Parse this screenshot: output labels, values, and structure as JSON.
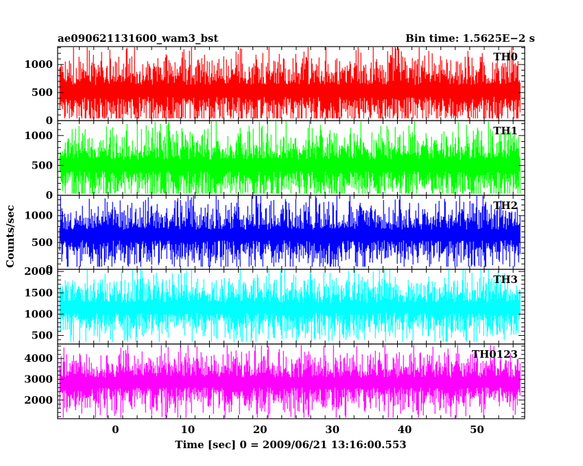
{
  "header": {
    "title": "ae090621131600_wam3_bst",
    "bin_time": "Bin time: 1.5625E−2 s"
  },
  "axes": {
    "ylabel": "Counts/sec",
    "xlabel": "Time [sec] 0 = 2009/06/21 13:16:00.553"
  },
  "chart_data": {
    "type": "line",
    "title": "ae090621131600_wam3_bst",
    "xlabel": "Time [sec] 0 = 2009/06/21 13:16:00.553",
    "ylabel": "Counts/sec",
    "xlim": [
      -8.0,
      56.6
    ],
    "data_x_range": [
      -7.7,
      56.0
    ],
    "x_ticks": [
      0,
      10,
      20,
      30,
      40,
      50
    ],
    "grid": false,
    "panels": [
      {
        "name": "TH0",
        "color": "#ff0000",
        "ylim": [
          0,
          1320
        ],
        "y_ticks": [
          0,
          500,
          1000
        ],
        "summary": {
          "approx_min": 40,
          "approx_mean": 530,
          "approx_max": 1320
        }
      },
      {
        "name": "TH1",
        "color": "#00ff00",
        "ylim": [
          0,
          1250
        ],
        "y_ticks": [
          0,
          500,
          1000
        ],
        "summary": {
          "approx_min": 30,
          "approx_mean": 500,
          "approx_max": 1250
        }
      },
      {
        "name": "TH2",
        "color": "#0000ff",
        "ylim": [
          0,
          1380
        ],
        "y_ticks": [
          0,
          500,
          1000
        ],
        "summary": {
          "approx_min": 50,
          "approx_mean": 640,
          "approx_max": 1380
        }
      },
      {
        "name": "TH3",
        "color": "#00ffff",
        "ylim": [
          300,
          2050
        ],
        "y_ticks": [
          500,
          1000,
          1500,
          2000
        ],
        "summary": {
          "approx_min": 350,
          "approx_mean": 1150,
          "approx_max": 2050
        }
      },
      {
        "name": "TH0123",
        "color": "#ff00ff",
        "ylim": [
          1100,
          4700
        ],
        "y_ticks": [
          2000,
          3000,
          4000
        ],
        "summary": {
          "approx_min": 1150,
          "approx_mean": 2850,
          "approx_max": 4650
        }
      }
    ]
  }
}
